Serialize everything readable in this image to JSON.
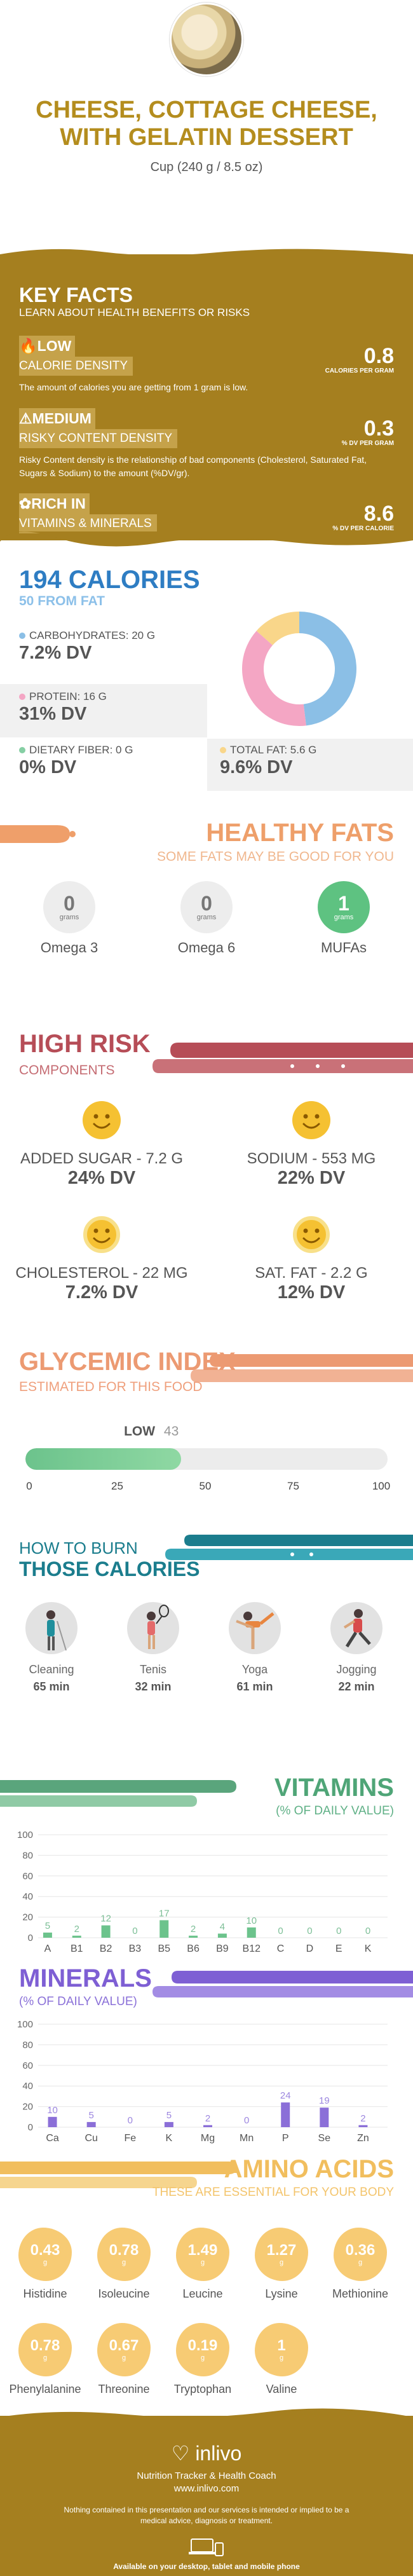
{
  "header": {
    "title": "CHEESE, COTTAGE CHEESE, WITH GELATIN DESSERT",
    "serving": "Cup (240 g / 8.5 oz)"
  },
  "key_facts": {
    "title": "KEY FACTS",
    "subtitle": "LEARN ABOUT HEALTH BENEFITS OR RISKS",
    "calorie_density": {
      "level": "LOW",
      "label": "CALORIE DENSITY",
      "value": "0.8",
      "unit": "CALORIES PER GRAM",
      "description": "The amount of calories you are getting from 1 gram is low."
    },
    "risky_density": {
      "level": "MEDIUM",
      "label": "RISKY CONTENT DENSITY",
      "value": "0.3",
      "unit": "% DV PER GRAM",
      "description": "Risky Content density is the relationship of bad components (Cholesterol, Saturated Fat, Sugars & Sodium) to the amount (%DV/gr)."
    },
    "vitamins": {
      "level": "RICH IN",
      "label": "VITAMINS & MINERALS",
      "value": "8.6",
      "unit": "% DV PER CALORIE"
    }
  },
  "calories": {
    "title": "194 CALORIES",
    "from_fat": "50 FROM FAT",
    "items": [
      {
        "label": "CARBOHYDRATES: 20 g",
        "dv": "7.2% DV",
        "color": "#8bbfe6"
      },
      {
        "label": "PROTEIN: 16 g",
        "dv": "31% DV",
        "color": "#f4a6c4"
      },
      {
        "label": "DIETARY FIBER: 0 g",
        "dv": "0% DV",
        "color": "#86cfa4"
      },
      {
        "label": "TOTAL FAT: 5.6 g",
        "dv": "9.6% DV",
        "color": "#f9d68a"
      }
    ],
    "donut": [
      {
        "value": 20,
        "color": "#8bbfe6"
      },
      {
        "value": 16,
        "color": "#f4a6c4"
      },
      {
        "value": 5.6,
        "color": "#f9d68a"
      }
    ]
  },
  "healthy_fats": {
    "title": "HEALTHY FATS",
    "subtitle": "SOME FATS MAY BE GOOD FOR YOU",
    "items": [
      {
        "name": "Omega 3",
        "value": "0",
        "unit": "grams"
      },
      {
        "name": "Omega 6",
        "value": "0",
        "unit": "grams"
      },
      {
        "name": "MUFAs",
        "value": "1",
        "unit": "grams"
      }
    ]
  },
  "high_risk": {
    "title": "HIGH RISK",
    "subtitle": "COMPONENTS",
    "items": [
      {
        "label": "ADDED SUGAR - 7.2 g",
        "dv": "24% DV"
      },
      {
        "label": "SODIUM - 553 mg",
        "dv": "22% DV"
      },
      {
        "label": "CHOLESTEROL - 22 mg",
        "dv": "7.2% DV"
      },
      {
        "label": "SAT. FAT - 2.2 g",
        "dv": "12% DV"
      }
    ]
  },
  "glycemic": {
    "title": "GLYCEMIC INDEX",
    "subtitle": "ESTIMATED FOR THIS FOOD",
    "level": "LOW",
    "value": 43,
    "value_text": "43",
    "ticks": [
      "0",
      "25",
      "50",
      "75",
      "100"
    ]
  },
  "burn": {
    "title_1": "HOW TO BURN",
    "title_2": "THOSE CALORIES",
    "activities": [
      {
        "name": "Cleaning",
        "minutes": "65 min",
        "icon": "cleaning-icon"
      },
      {
        "name": "Tenis",
        "minutes": "32 min",
        "icon": "tennis-icon"
      },
      {
        "name": "Yoga",
        "minutes": "61 min",
        "icon": "yoga-icon"
      },
      {
        "name": "Jogging",
        "minutes": "22 min",
        "icon": "jogging-icon"
      }
    ]
  },
  "vitamins_section": {
    "title": "VITAMINS",
    "subtitle": "(% OF DAILY VALUE)"
  },
  "minerals_section": {
    "title": "MINERALS",
    "subtitle": "(% OF DAILY VALUE)"
  },
  "chart_data": [
    {
      "type": "bar",
      "categories": [
        "A",
        "B1",
        "B2",
        "B3",
        "B5",
        "B6",
        "B9",
        "B12",
        "C",
        "D",
        "E",
        "K"
      ],
      "values": [
        5,
        2,
        12,
        0,
        17,
        2,
        4,
        10,
        0,
        0,
        0,
        0
      ],
      "y_ticks": [
        "0",
        "20",
        "40",
        "60",
        "80",
        "100"
      ],
      "ylim": [
        0,
        100
      ],
      "color": "#6cc38c",
      "grid": true
    },
    {
      "type": "bar",
      "categories": [
        "Ca",
        "Cu",
        "Fe",
        "K",
        "Mg",
        "Mn",
        "P",
        "Se",
        "Zn"
      ],
      "values": [
        10,
        5,
        0,
        5,
        2,
        0,
        24,
        19,
        2
      ],
      "y_ticks": [
        "0",
        "20",
        "40",
        "60",
        "80",
        "100"
      ],
      "ylim": [
        0,
        100
      ],
      "color": "#8b6fd8",
      "grid": true
    }
  ],
  "amino": {
    "title": "AMINO ACIDS",
    "subtitle": "THESE ARE ESSENTIAL FOR YOUR BODY",
    "unit": "g",
    "items": [
      {
        "name": "Histidine",
        "value": "0.43"
      },
      {
        "name": "Isoleucine",
        "value": "0.78"
      },
      {
        "name": "Leucine",
        "value": "1.49"
      },
      {
        "name": "Lysine",
        "value": "1.27"
      },
      {
        "name": "Methionine",
        "value": "0.36"
      },
      {
        "name": "Phenylalanine",
        "value": "0.78"
      },
      {
        "name": "Threonine",
        "value": "0.67"
      },
      {
        "name": "Tryptophan",
        "value": "0.19"
      },
      {
        "name": "Valine",
        "value": "1"
      }
    ]
  },
  "footer": {
    "logo": "inlivo",
    "tagline": "Nutrition Tracker & Health Coach",
    "url": "www.inlivo.com",
    "disclaimer": "Nothing contained in this presentation and our services is intended or implied to be a medical advice, diagnosis or treatment.",
    "available": "Available on your desktop, tablet and mobile phone"
  }
}
